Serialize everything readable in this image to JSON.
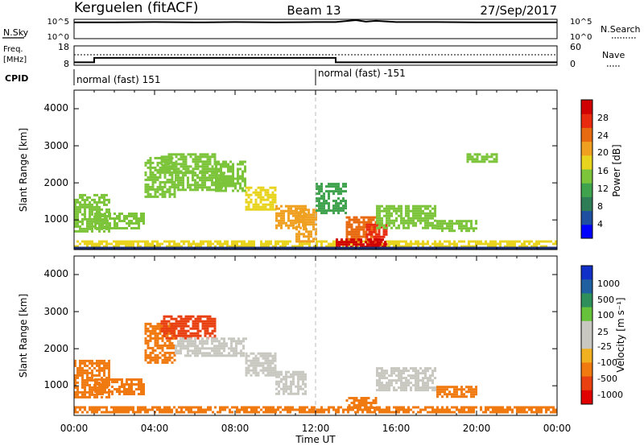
{
  "header": {
    "station": "Kerguelen (fitACF)",
    "beam": "Beam 13",
    "date": "27/Sep/2017"
  },
  "sky_panel": {
    "label": "N.Sky",
    "right_label": "N.Search",
    "ticks_left": [
      "10^5",
      "10^0"
    ],
    "ticks_right": [
      "10^5",
      "10^0"
    ]
  },
  "freq_panel": {
    "label_line1": "Freq.",
    "label_line2": "[MHz]",
    "right_label": "Nave",
    "ticks_left": [
      "18",
      "8"
    ],
    "ticks_right": [
      "60",
      "0"
    ]
  },
  "cpid": {
    "label": "CPID",
    "segments": [
      {
        "label": "normal (fast) 151",
        "start_hour": 0
      },
      {
        "label": "normal (fast) -151",
        "start_hour": 12
      }
    ]
  },
  "x_axis": {
    "label": "Time UT",
    "ticks": [
      "00:00",
      "04:00",
      "08:00",
      "12:00",
      "16:00",
      "20:00",
      "00:00"
    ]
  },
  "power_panel": {
    "ylabel": "Slant Range [km]",
    "yticks": [
      "4000",
      "3000",
      "2000",
      "1000"
    ],
    "colorbar_label": "Power [dB]",
    "colorbar_ticks": [
      "28",
      "24",
      "20",
      "16",
      "12",
      "8",
      "4"
    ],
    "colors": [
      "#0000ff",
      "#1f4fa0",
      "#2e7d57",
      "#3fa34d",
      "#7cc43a",
      "#e8d31f",
      "#f0a020",
      "#e86a10",
      "#e82a10",
      "#d00000"
    ]
  },
  "velocity_panel": {
    "ylabel": "Slant Range [km]",
    "yticks": [
      "4000",
      "3000",
      "2000",
      "1000"
    ],
    "colorbar_label": "Velocity [m s⁻¹]",
    "colorbar_ticks": [
      "1000",
      "500",
      "100",
      "25",
      "-25",
      "-100",
      "-500",
      "-1000"
    ],
    "colors": [
      "#1030c8",
      "#2060a0",
      "#2f8f5a",
      "#66c23a",
      "#c8c8c0",
      "#c8c8c0",
      "#f0b020",
      "#f07a10",
      "#e84010",
      "#e00000"
    ]
  },
  "chart_data": [
    {
      "type": "line",
      "title": "N.Sky",
      "x": [
        0,
        2,
        4,
        6,
        8,
        10,
        12,
        13,
        14,
        14.5,
        15,
        16,
        18,
        20,
        22,
        24
      ],
      "series": [
        {
          "values": [
            4.2,
            4.2,
            4.3,
            4.2,
            4.3,
            4.2,
            4.3,
            4.3,
            4.8,
            4.4,
            4.6,
            4.3,
            4.3,
            4.2,
            4.2,
            4.2
          ]
        }
      ],
      "yscale": "log",
      "ylim": [
        0,
        5
      ]
    },
    {
      "type": "line",
      "title": "Freq.",
      "x": [
        0,
        1,
        1,
        13,
        13,
        24
      ],
      "series": [
        {
          "values": [
            9.5,
            9.5,
            11.8,
            11.8,
            9.5,
            9.5
          ]
        }
      ],
      "ylim": [
        8,
        18
      ]
    },
    {
      "type": "heatmap",
      "title": "Power [dB]",
      "xlim": [
        0,
        24
      ],
      "ylim": [
        200,
        4500
      ],
      "cells": [
        {
          "t0": 0.0,
          "t1": 1.8,
          "r0": 700,
          "r1": 1700,
          "v": 14
        },
        {
          "t0": 0.0,
          "t1": 24.0,
          "r0": 300,
          "r1": 450,
          "v": 16
        },
        {
          "t0": 1.0,
          "t1": 3.5,
          "r0": 800,
          "r1": 1200,
          "v": 13
        },
        {
          "t0": 3.5,
          "t1": 5.0,
          "r0": 1600,
          "r1": 2700,
          "v": 12
        },
        {
          "t0": 4.3,
          "t1": 7.0,
          "r0": 2300,
          "r1": 2800,
          "v": 14
        },
        {
          "t0": 5.0,
          "t1": 7.5,
          "r0": 1800,
          "r1": 2300,
          "v": 12
        },
        {
          "t0": 7.0,
          "t1": 8.5,
          "r0": 1800,
          "r1": 2600,
          "v": 14
        },
        {
          "t0": 8.5,
          "t1": 10.0,
          "r0": 1300,
          "r1": 1900,
          "v": 16
        },
        {
          "t0": 10.0,
          "t1": 11.5,
          "r0": 800,
          "r1": 1400,
          "v": 18
        },
        {
          "t0": 11.0,
          "t1": 12.0,
          "r0": 400,
          "r1": 1300,
          "v": 20
        },
        {
          "t0": 12.0,
          "t1": 13.5,
          "r0": 1200,
          "r1": 2000,
          "v": 10
        },
        {
          "t0": 13.5,
          "t1": 15.0,
          "r0": 400,
          "r1": 1100,
          "v": 22
        },
        {
          "t0": 14.5,
          "t1": 15.5,
          "r0": 300,
          "r1": 900,
          "v": 26
        },
        {
          "t0": 15.0,
          "t1": 18.0,
          "r0": 800,
          "r1": 1400,
          "v": 12
        },
        {
          "t0": 18.0,
          "t1": 20.0,
          "r0": 700,
          "r1": 1000,
          "v": 12
        },
        {
          "t0": 19.5,
          "t1": 21.0,
          "r0": 2600,
          "r1": 2800,
          "v": 12
        },
        {
          "t0": 13.0,
          "t1": 15.5,
          "r0": 300,
          "r1": 500,
          "v": 28
        }
      ]
    },
    {
      "type": "heatmap",
      "title": "Velocity [m s-1]",
      "xlim": [
        0,
        24
      ],
      "ylim": [
        200,
        4500
      ],
      "cells": [
        {
          "t0": 0.0,
          "t1": 1.8,
          "r0": 700,
          "r1": 1700,
          "v": -100
        },
        {
          "t0": 1.0,
          "t1": 3.5,
          "r0": 800,
          "r1": 1200,
          "v": -100
        },
        {
          "t0": 3.5,
          "t1": 5.0,
          "r0": 1600,
          "r1": 2700,
          "v": -100
        },
        {
          "t0": 4.3,
          "t1": 7.0,
          "r0": 2300,
          "r1": 2900,
          "v": -500
        },
        {
          "t0": 5.0,
          "t1": 8.5,
          "r0": 1800,
          "r1": 2300,
          "v": 0
        },
        {
          "t0": 8.5,
          "t1": 10.0,
          "r0": 1300,
          "r1": 1900,
          "v": 0
        },
        {
          "t0": 10.0,
          "t1": 11.5,
          "r0": 800,
          "r1": 1400,
          "v": 0
        },
        {
          "t0": 13.5,
          "t1": 15.0,
          "r0": 400,
          "r1": 700,
          "v": -100
        },
        {
          "t0": 15.0,
          "t1": 18.0,
          "r0": 900,
          "r1": 1500,
          "v": 0
        },
        {
          "t0": 18.0,
          "t1": 20.0,
          "r0": 700,
          "r1": 1000,
          "v": -100
        },
        {
          "t0": 0.0,
          "t1": 24.0,
          "r0": 300,
          "r1": 450,
          "v": -100
        }
      ]
    }
  ]
}
